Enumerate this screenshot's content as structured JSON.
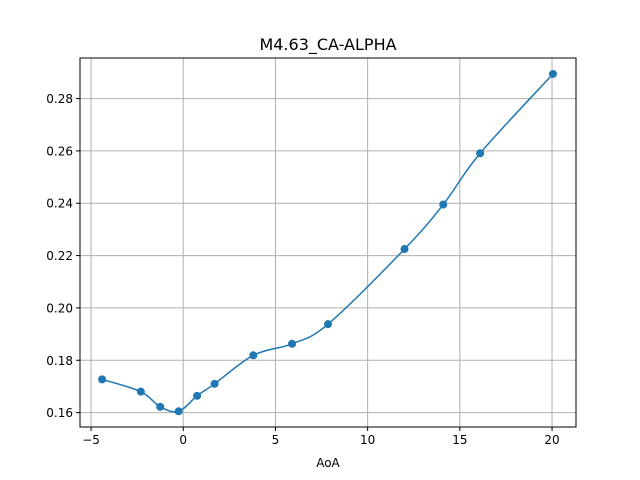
{
  "chart_data": {
    "type": "line",
    "title": "M4.63_CA-ALPHA",
    "xlabel": "AoA",
    "ylabel": "",
    "xlim": [
      -5.6,
      21.3
    ],
    "ylim": [
      0.1545,
      0.2955
    ],
    "xticks": [
      -5,
      0,
      5,
      10,
      15,
      20
    ],
    "yticks": [
      0.16,
      0.18,
      0.2,
      0.22,
      0.24,
      0.26,
      0.28
    ],
    "ytick_labels": [
      "0.16",
      "0.18",
      "0.20",
      "0.22",
      "0.24",
      "0.26",
      "0.28"
    ],
    "grid": true,
    "color": "#1f77b4",
    "series": [
      {
        "x": [
          -4.4,
          -2.3,
          -1.25,
          -0.25,
          0.75,
          1.7,
          3.8,
          5.9,
          7.85,
          12.0,
          14.1,
          16.1,
          20.05
        ],
        "y": [
          0.1727,
          0.168,
          0.1622,
          0.1605,
          0.1664,
          0.171,
          0.1819,
          0.1863,
          0.1938,
          0.2225,
          0.2395,
          0.2591,
          0.2894
        ]
      }
    ]
  }
}
